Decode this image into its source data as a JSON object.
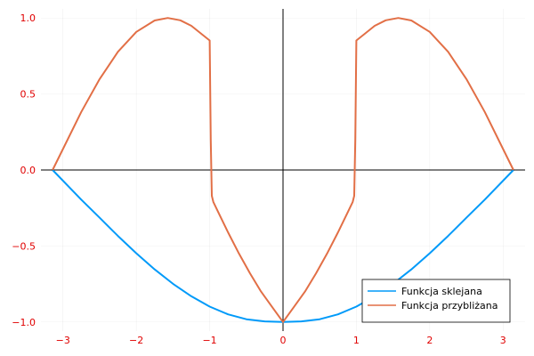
{
  "chart_data": {
    "type": "line",
    "title": "",
    "xlabel": "",
    "ylabel": "",
    "xlim": [
      -3.3,
      3.3
    ],
    "ylim": [
      -1.06,
      1.06
    ],
    "grid": true,
    "axes_through_origin": true,
    "legend_position": "bottom-right",
    "x_ticks": [
      -3,
      -2,
      -1,
      0,
      1,
      2,
      3
    ],
    "x_tick_labels": [
      "−3",
      "−2",
      "−1",
      "0",
      "1",
      "2",
      "3"
    ],
    "y_ticks": [
      -1.0,
      -0.5,
      0.0,
      0.5,
      1.0
    ],
    "y_tick_labels": [
      "−1.0",
      "−0.5",
      "0.0",
      "0.5",
      "1.0"
    ],
    "series": [
      {
        "name": "Funkcja sklejana",
        "color": "#009af9",
        "x": [
          -3.1416,
          -2.75,
          -2.5,
          -2.25,
          -2.0,
          -1.75,
          -1.5,
          -1.25,
          -1.0,
          -0.75,
          -0.5,
          -0.25,
          0.0,
          0.25,
          0.5,
          0.75,
          1.0,
          1.25,
          1.5,
          1.75,
          2.0,
          2.25,
          2.5,
          2.75,
          3.1416
        ],
        "y": [
          0.0,
          -0.195,
          -0.314,
          -0.434,
          -0.548,
          -0.654,
          -0.749,
          -0.831,
          -0.899,
          -0.95,
          -0.982,
          -0.996,
          -1.0,
          -0.996,
          -0.982,
          -0.95,
          -0.899,
          -0.831,
          -0.749,
          -0.654,
          -0.548,
          -0.434,
          -0.314,
          -0.195,
          0.0
        ]
      },
      {
        "name": "Funkcja przybliżana",
        "color": "#e26f46",
        "x": [
          -3.1416,
          -2.75,
          -2.5,
          -2.25,
          -2.0,
          -1.75,
          -1.5708,
          -1.4,
          -1.25,
          -1.1,
          -1.0,
          -0.985,
          -0.97,
          -0.95,
          -0.85,
          -0.75,
          -0.6,
          -0.45,
          -0.3,
          -0.15,
          0.0,
          0.15,
          0.3,
          0.45,
          0.6,
          0.75,
          0.85,
          0.95,
          0.97,
          0.985,
          1.0,
          1.1,
          1.25,
          1.4,
          1.5708,
          1.75,
          2.0,
          2.25,
          2.5,
          2.75,
          3.1416
        ],
        "y": [
          0.0,
          0.382,
          0.598,
          0.778,
          0.909,
          0.984,
          1.0,
          0.985,
          0.949,
          0.891,
          0.852,
          0.2,
          -0.17,
          -0.21,
          -0.31,
          -0.41,
          -0.55,
          -0.68,
          -0.8,
          -0.9,
          -1.0,
          -0.9,
          -0.8,
          -0.68,
          -0.55,
          -0.41,
          -0.31,
          -0.21,
          -0.17,
          0.2,
          0.852,
          0.891,
          0.949,
          0.985,
          1.0,
          0.984,
          0.909,
          0.778,
          0.598,
          0.382,
          0.0
        ]
      }
    ]
  }
}
